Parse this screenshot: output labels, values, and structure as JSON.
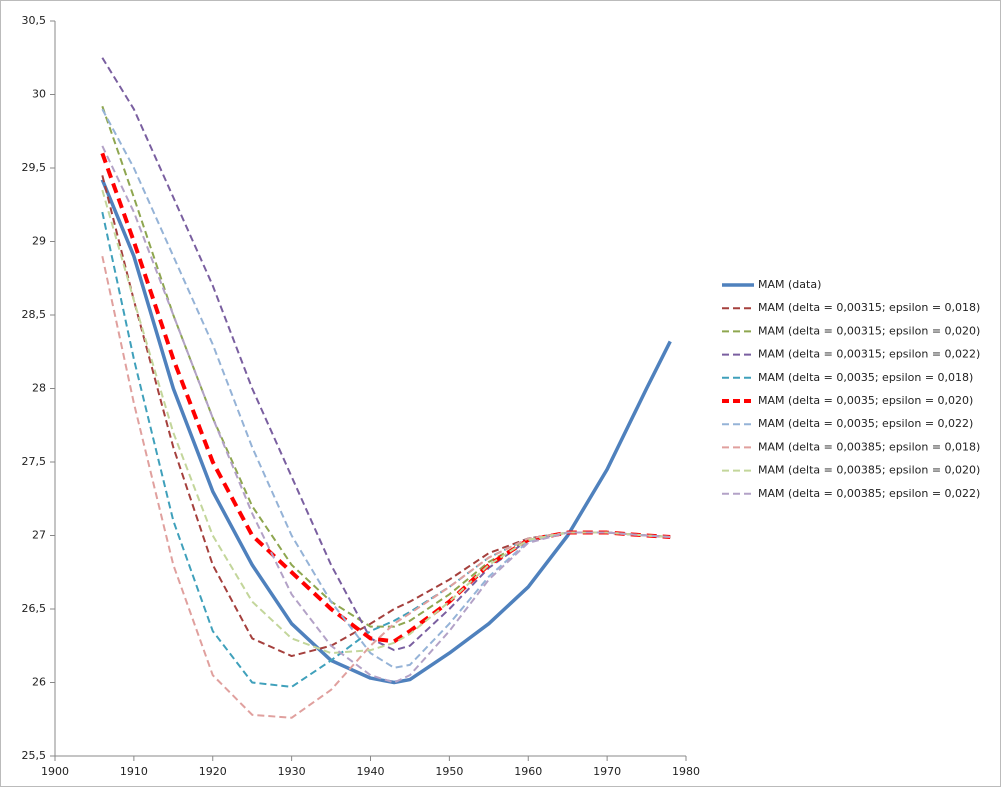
{
  "chart_data": {
    "type": "line",
    "x": [
      1906,
      1910,
      1915,
      1920,
      1925,
      1930,
      1935,
      1940,
      1943,
      1945,
      1950,
      1955,
      1960,
      1965,
      1970,
      1975,
      1978
    ],
    "xlim": [
      1900,
      1980
    ],
    "xticks": [
      1900,
      1910,
      1920,
      1930,
      1940,
      1950,
      1960,
      1970,
      1980
    ],
    "ylim": [
      25.5,
      30.5
    ],
    "yticks": [
      {
        "value": 25.5,
        "label": "25,5"
      },
      26,
      {
        "value": 26.5,
        "label": "26,5"
      },
      27,
      {
        "value": 27.5,
        "label": "27,5"
      },
      28,
      {
        "value": 28.5,
        "label": "28,5"
      },
      29,
      {
        "value": 29.5,
        "label": "29,5"
      },
      30,
      {
        "value": 30.5,
        "label": "30,5"
      }
    ],
    "grid": false,
    "legend": "right",
    "series": [
      {
        "name": "MAM (data)",
        "color": "#4f81bd",
        "line_style": "solid-thick",
        "values": [
          29.42,
          28.9,
          28.0,
          27.3,
          26.8,
          26.4,
          26.15,
          26.03,
          26.0,
          26.02,
          26.2,
          26.4,
          26.65,
          27.0,
          27.45,
          28.0,
          28.32
        ]
      },
      {
        "name": "MAM (delta = 0,00315; epsilon = 0,018)",
        "color": "#a5403d",
        "line_style": "dashed",
        "values": [
          29.45,
          28.6,
          27.6,
          26.8,
          26.3,
          26.18,
          26.25,
          26.4,
          26.5,
          26.55,
          26.7,
          26.88,
          26.98,
          27.02,
          27.02,
          27.0,
          26.99
        ]
      },
      {
        "name": "MAM (delta = 0,00315; epsilon = 0,020)",
        "color": "#8ea64f",
        "line_style": "dashed",
        "values": [
          29.92,
          29.3,
          28.5,
          27.8,
          27.2,
          26.8,
          26.55,
          26.38,
          26.38,
          26.42,
          26.6,
          26.82,
          26.97,
          27.02,
          27.02,
          27.0,
          26.99
        ]
      },
      {
        "name": "MAM (delta = 0,00315; epsilon = 0,022)",
        "color": "#7a5fa0",
        "line_style": "dashed",
        "values": [
          30.25,
          29.9,
          29.3,
          28.7,
          28.0,
          27.4,
          26.8,
          26.3,
          26.22,
          26.25,
          26.5,
          26.78,
          26.97,
          27.02,
          27.02,
          27.0,
          26.99
        ]
      },
      {
        "name": "MAM (delta = 0,0035; epsilon = 0,018)",
        "color": "#3fa0bb",
        "line_style": "dashed",
        "values": [
          29.2,
          28.2,
          27.1,
          26.35,
          26.0,
          25.97,
          26.15,
          26.35,
          26.42,
          26.48,
          26.65,
          26.85,
          26.98,
          27.02,
          27.02,
          27.0,
          26.99
        ]
      },
      {
        "name": "MAM (delta = 0,0035; epsilon = 0,020)",
        "color": "#ff0000",
        "line_style": "dashed-thick",
        "values": [
          29.6,
          29.0,
          28.2,
          27.5,
          27.0,
          26.75,
          26.5,
          26.3,
          26.28,
          26.35,
          26.55,
          26.8,
          26.97,
          27.02,
          27.02,
          27.0,
          26.99
        ]
      },
      {
        "name": "MAM (delta = 0,0035; epsilon = 0,022)",
        "color": "#95b3d7",
        "line_style": "dashed",
        "values": [
          29.9,
          29.5,
          28.9,
          28.3,
          27.6,
          27.0,
          26.55,
          26.2,
          26.1,
          26.12,
          26.4,
          26.72,
          26.96,
          27.02,
          27.02,
          27.0,
          26.99
        ]
      },
      {
        "name": "MAM (delta = 0,00385; epsilon = 0,018)",
        "color": "#e0a09e",
        "line_style": "dashed",
        "values": [
          28.9,
          27.9,
          26.8,
          26.05,
          25.78,
          25.76,
          25.95,
          26.25,
          26.4,
          26.47,
          26.65,
          26.85,
          26.98,
          27.02,
          27.02,
          27.0,
          26.99
        ]
      },
      {
        "name": "MAM (delta = 0,00385; epsilon = 0,020)",
        "color": "#c3d69b",
        "line_style": "dashed",
        "values": [
          29.35,
          28.6,
          27.7,
          27.0,
          26.55,
          26.3,
          26.2,
          26.22,
          26.27,
          26.33,
          26.55,
          26.8,
          26.97,
          27.02,
          27.02,
          27.0,
          26.99
        ]
      },
      {
        "name": "MAM (delta = 0,00385; epsilon = 0,022)",
        "color": "#b3a2c7",
        "line_style": "dashed",
        "values": [
          29.65,
          29.2,
          28.5,
          27.8,
          27.15,
          26.6,
          26.25,
          26.05,
          26.0,
          26.05,
          26.35,
          26.7,
          26.95,
          27.02,
          27.02,
          27.0,
          26.99
        ]
      }
    ]
  }
}
